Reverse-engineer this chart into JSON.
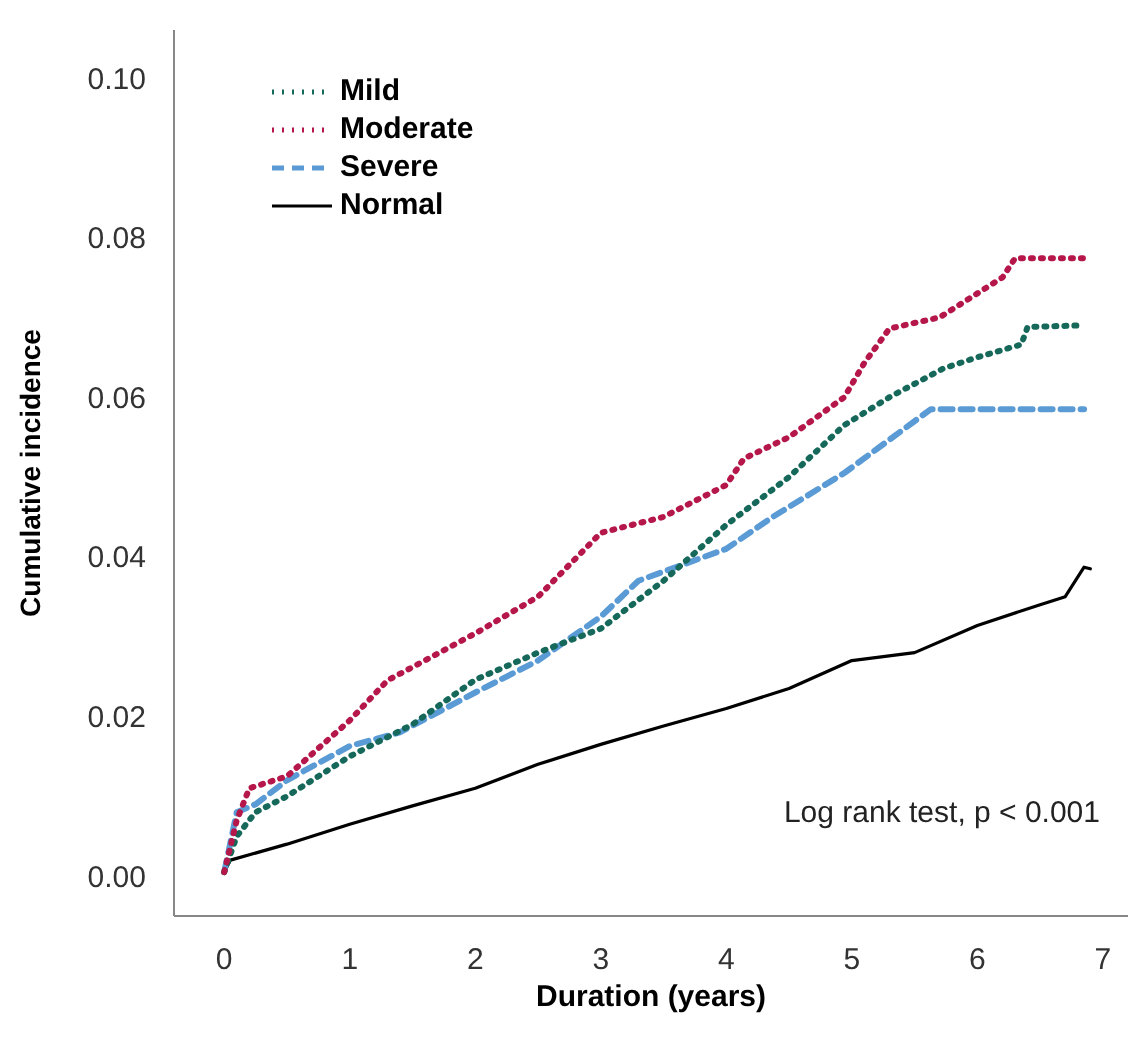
{
  "chart_data": {
    "type": "line",
    "xlabel": "Duration (years)",
    "ylabel": "Cumulative incidence",
    "xlim": [
      -0.4,
      7.2
    ],
    "ylim": [
      -0.005,
      0.106
    ],
    "xticks": [
      0,
      1,
      2,
      3,
      4,
      5,
      6,
      7
    ],
    "yticks": [
      {
        "value": 0,
        "label": "0.00"
      },
      {
        "value": 0.02,
        "label": "0.02"
      },
      {
        "value": 0.04,
        "label": "0.04"
      },
      {
        "value": 0.06,
        "label": "0.06"
      },
      {
        "value": 0.08,
        "label": "0.08"
      },
      {
        "value": 0.1,
        "label": "0.10"
      }
    ],
    "grid": false,
    "legend": "top left",
    "marker": "none",
    "annotations": [
      "Log rank test, p < 0.001"
    ],
    "series": [
      {
        "name": "Mild",
        "color": "#16695a",
        "line_style": "dotted",
        "x": [
          0,
          0.1,
          0.25,
          0.5,
          1,
          1.5,
          2,
          2.5,
          3,
          3.5,
          4,
          4.5,
          4.94,
          5.3,
          5.73,
          6.0,
          6.35,
          6.4,
          6.85
        ],
        "values": [
          0.0005,
          0.005,
          0.008,
          0.01,
          0.015,
          0.019,
          0.0246,
          0.028,
          0.031,
          0.037,
          0.044,
          0.05,
          0.0565,
          0.06,
          0.0636,
          0.065,
          0.0666,
          0.0688,
          0.069
        ]
      },
      {
        "name": "Moderate",
        "color": "#b5174b",
        "line_style": "dotted",
        "x": [
          0,
          0.1,
          0.2,
          0.5,
          1,
          1.3,
          2,
          2.5,
          3,
          3.5,
          4,
          4.14,
          4.5,
          4.94,
          5.1,
          5.3,
          5.7,
          6.0,
          6.2,
          6.3,
          6.85
        ],
        "values": [
          0.0005,
          0.007,
          0.011,
          0.0125,
          0.0195,
          0.0245,
          0.0304,
          0.035,
          0.043,
          0.045,
          0.049,
          0.0523,
          0.055,
          0.06,
          0.0643,
          0.0686,
          0.07,
          0.073,
          0.075,
          0.0774,
          0.0774
        ]
      },
      {
        "name": "Severe",
        "color": "#5b9bd5",
        "line_style": "dashed",
        "x": [
          0,
          0.1,
          0.25,
          0.5,
          1,
          1.4,
          2,
          2.5,
          3,
          3.3,
          4,
          4.37,
          4.94,
          5.63,
          6.85
        ],
        "values": [
          0.0005,
          0.008,
          0.009,
          0.012,
          0.0163,
          0.018,
          0.023,
          0.027,
          0.0325,
          0.037,
          0.041,
          0.045,
          0.0505,
          0.0585,
          0.0585
        ]
      },
      {
        "name": "Normal",
        "color": "#000000",
        "line_style": "solid",
        "x": [
          0,
          0.05,
          0.5,
          1,
          1.5,
          2,
          2.5,
          3,
          3.5,
          4,
          4.5,
          5,
          5.5,
          6,
          6.5,
          6.7,
          6.85,
          6.9
        ],
        "values": [
          0.0005,
          0.002,
          0.004,
          0.0065,
          0.0088,
          0.011,
          0.014,
          0.0165,
          0.0188,
          0.021,
          0.0235,
          0.027,
          0.028,
          0.0314,
          0.034,
          0.035,
          0.0387,
          0.0385
        ]
      }
    ]
  }
}
